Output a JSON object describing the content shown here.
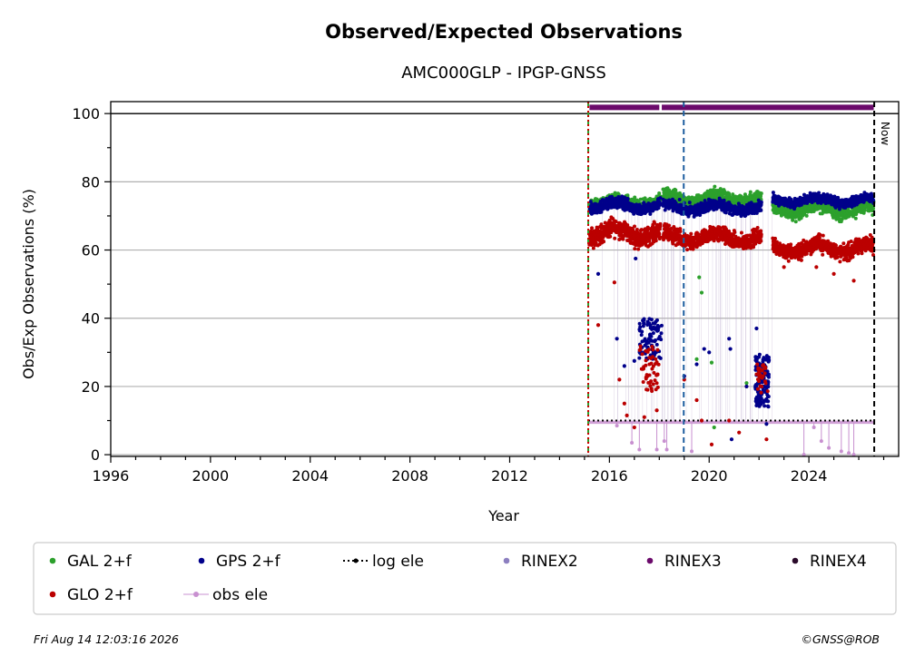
{
  "chart_data": {
    "type": "scatter",
    "title": "Observed/Expected Observations",
    "subtitle": "AMC000GLP - IPGP-GNSS",
    "xlabel": "Year",
    "ylabel": "Obs/Exp Observations (%)",
    "xlim": [
      1996,
      2027.6
    ],
    "ylim": [
      -0.5,
      103.5
    ],
    "xticks": [
      1996,
      2000,
      2004,
      2008,
      2012,
      2016,
      2020,
      2024
    ],
    "yticks": [
      0,
      20,
      40,
      60,
      80,
      100
    ],
    "grid": "y",
    "legend_position": "bottom",
    "now_label": "Now",
    "vlines": [
      {
        "x": 2015.15,
        "color": "#2ca02c",
        "style": "dashed"
      },
      {
        "x": 2015.15,
        "color": "#cc0000",
        "style": "dotted"
      },
      {
        "x": 2018.98,
        "color": "#1f5fa0",
        "style": "dashed"
      },
      {
        "x": 2026.62,
        "color": "#000000",
        "style": "dashed"
      }
    ],
    "hline_100": 100,
    "series": [
      {
        "name": "GAL 2+f",
        "color": "#2ca02c",
        "segments": [
          {
            "start": 2015.2,
            "end": 2018.05,
            "level": 74,
            "spread": 2.5
          },
          {
            "start": 2018.15,
            "end": 2022.1,
            "level": 75,
            "spread": 3
          },
          {
            "start": 2022.55,
            "end": 2026.6,
            "level": 72,
            "spread": 3
          }
        ],
        "outliers": [
          [
            2019.6,
            52
          ],
          [
            2019.7,
            47.5
          ],
          [
            2019.5,
            28
          ],
          [
            2020.1,
            27
          ],
          [
            2021.5,
            21
          ],
          [
            2020.2,
            8
          ]
        ]
      },
      {
        "name": "GPS 2+f",
        "color": "#00008b",
        "segments": [
          {
            "start": 2015.2,
            "end": 2018.05,
            "level": 73,
            "spread": 2.5
          },
          {
            "start": 2018.15,
            "end": 2022.1,
            "level": 72.5,
            "spread": 2.5
          },
          {
            "start": 2022.55,
            "end": 2026.6,
            "level": 74.5,
            "spread": 2
          }
        ],
        "outliers": [
          [
            2015.55,
            53
          ],
          [
            2017.05,
            57.5
          ],
          [
            2016.3,
            34
          ],
          [
            2016.6,
            26
          ],
          [
            2017.0,
            27.5
          ],
          [
            2019.0,
            23
          ],
          [
            2019.5,
            26.5
          ],
          [
            2019.8,
            31
          ],
          [
            2020.0,
            30
          ],
          [
            2020.8,
            34
          ],
          [
            2020.85,
            31
          ],
          [
            2020.9,
            4.5
          ],
          [
            2021.5,
            20
          ],
          [
            2021.9,
            37
          ],
          [
            2022.3,
            9
          ]
        ]
      },
      {
        "name": "GLO 2+f",
        "color": "#bb0000",
        "segments": [
          {
            "start": 2015.2,
            "end": 2018.05,
            "level": 65,
            "spread": 4
          },
          {
            "start": 2018.15,
            "end": 2022.1,
            "level": 63.5,
            "spread": 3.5
          },
          {
            "start": 2022.55,
            "end": 2026.6,
            "level": 60.5,
            "spread": 3.5
          }
        ],
        "outliers": [
          [
            2015.55,
            38
          ],
          [
            2016.2,
            50.5
          ],
          [
            2016.4,
            22
          ],
          [
            2016.6,
            15
          ],
          [
            2016.7,
            11.5
          ],
          [
            2017.0,
            8
          ],
          [
            2017.4,
            11
          ],
          [
            2017.9,
            13
          ],
          [
            2019.0,
            22
          ],
          [
            2019.5,
            16
          ],
          [
            2019.7,
            10
          ],
          [
            2020.1,
            3
          ],
          [
            2020.8,
            10
          ],
          [
            2021.2,
            6.5
          ],
          [
            2021.5,
            20
          ],
          [
            2022.3,
            4.5
          ],
          [
            2023.0,
            55
          ],
          [
            2023.7,
            57
          ],
          [
            2024.3,
            55
          ],
          [
            2025.0,
            53
          ],
          [
            2025.8,
            51
          ]
        ]
      },
      {
        "name": "log ele",
        "color": "#000000",
        "points": [
          [
            2015.15,
            10
          ],
          [
            2026.62,
            10
          ]
        ]
      },
      {
        "name": "RINEX2",
        "color": "#8c7fc0"
      },
      {
        "name": "RINEX3",
        "color": "#6b0a6b",
        "segments": [
          [
            2015.2,
            2018.0,
            101.8
          ],
          [
            2018.1,
            2026.6,
            101.8
          ]
        ]
      },
      {
        "name": "RINEX4",
        "color": "#2a0a2a"
      },
      {
        "name": "obs ele",
        "color": "#c890d0",
        "level": 9.5,
        "dips": [
          [
            2016.3,
            8.5
          ],
          [
            2016.9,
            3.5
          ],
          [
            2017.2,
            1.5
          ],
          [
            2017.9,
            1.5
          ],
          [
            2018.2,
            4
          ],
          [
            2018.3,
            1.5
          ],
          [
            2019.3,
            1
          ],
          [
            2023.8,
            0
          ],
          [
            2024.2,
            8
          ],
          [
            2024.5,
            4
          ],
          [
            2024.8,
            2
          ],
          [
            2025.3,
            1
          ],
          [
            2025.6,
            0.5
          ],
          [
            2025.8,
            0
          ]
        ]
      }
    ]
  },
  "legend": {
    "row1": [
      "GAL 2+f",
      "GPS 2+f",
      "log ele",
      "RINEX2",
      "RINEX3",
      "RINEX4"
    ],
    "row2": [
      "GLO 2+f",
      "obs ele"
    ]
  },
  "footer": {
    "date": "Fri Aug 14 12:03:16 2026",
    "copyright": "©GNSS@ROB"
  }
}
